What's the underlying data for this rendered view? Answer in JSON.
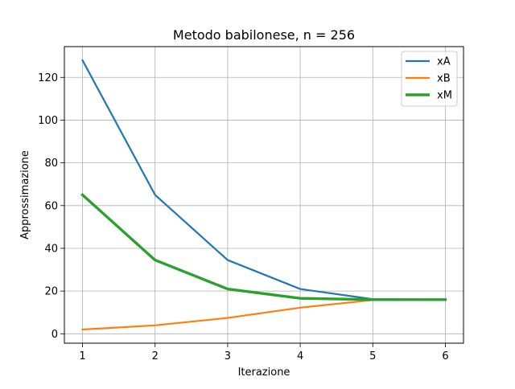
{
  "chart_data": {
    "type": "line",
    "title": "Metodo babilonese, n = 256",
    "xlabel": "Iterazione",
    "ylabel": "Approssimazione",
    "x": [
      1,
      2,
      3,
      4,
      5,
      6
    ],
    "xticks": [
      1,
      2,
      3,
      4,
      5,
      6
    ],
    "yticks": [
      0,
      20,
      40,
      60,
      80,
      100,
      120
    ],
    "xlim": [
      0.75,
      6.25
    ],
    "ylim": [
      -4.4,
      134.4
    ],
    "grid": true,
    "legend_position": "top-right",
    "series": [
      {
        "name": "xA",
        "color": "#1f77b4",
        "values": [
          128,
          65,
          34.5,
          20.96,
          16.2,
          16.0
        ]
      },
      {
        "name": "xB",
        "color": "#ff7f0e",
        "values": [
          2,
          3.94,
          7.42,
          12.21,
          15.8,
          16.0
        ]
      },
      {
        "name": "xM",
        "color": "#2ca02c",
        "values": [
          65,
          34.5,
          20.96,
          16.59,
          16.0,
          16.0
        ]
      }
    ]
  }
}
